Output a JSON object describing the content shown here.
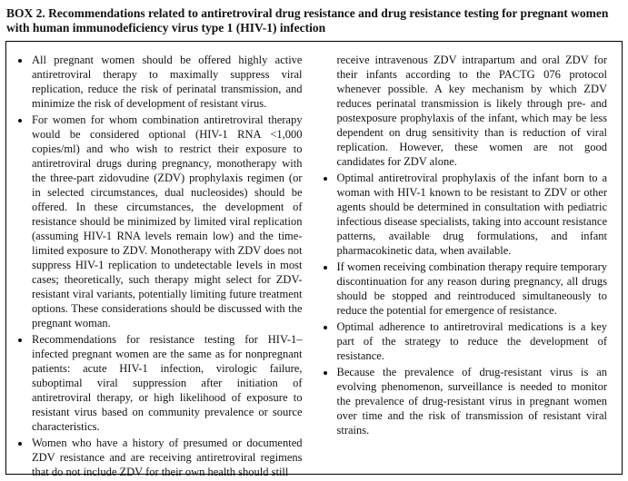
{
  "header": {
    "title": "BOX 2. Recommendations related to antiretroviral drug resistance and drug resistance testing for pregnant women with human immunodeficiency virus type 1 (HIV-1) infection"
  },
  "box": {
    "left_column": {
      "bullets": [
        "All pregnant women should be offered highly active antiretroviral therapy to maximally suppress viral replication, reduce the risk of perinatal transmission, and minimize the risk of development of resistant virus.",
        "For women for whom combination antiretroviral therapy would be considered optional (HIV-1 RNA <1,000 copies/ml) and who wish to restrict their exposure to antiretroviral drugs during pregnancy, monotherapy with the three-part zidovudine (ZDV) prophylaxis regimen (or in selected circumstances, dual nucleosides) should be offered. In these circumstances, the development of resistance should be minimized by limited viral replication (assuming HIV-1 RNA levels remain low) and the time-limited exposure to ZDV. Monotherapy with ZDV does not suppress HIV-1 replication to undetectable levels in most cases; theoretically, such therapy might select for ZDV-resistant viral variants, potentially limiting future treatment options. These considerations should be discussed with the pregnant woman.",
        "Recommendations for resistance testing for HIV-1–infected pregnant women are the same as for nonpregnant patients: acute HIV-1 infection, virologic failure, suboptimal viral suppression after initiation of antiretroviral therapy, or high likelihood of exposure to resistant virus based on community prevalence or source characteristics.",
        "Women who have a history of presumed or documented ZDV resistance and are receiving antiretroviral regimens that do not include ZDV for their own health should still"
      ]
    },
    "right_column": {
      "continuation": "receive intravenous ZDV intrapartum and oral ZDV for their infants according to the PACTG 076 protocol whenever possible. A key mechanism by which ZDV reduces perinatal transmission is likely through pre- and postexposure prophylaxis of the infant, which may be less dependent on drug sensitivity than is reduction of viral replication. However, these women are not good candidates for ZDV alone.",
      "bullets": [
        "Optimal antiretroviral prophylaxis of the infant born to a woman with HIV-1 known to be resistant to ZDV or other agents should be determined in consultation with pediatric infectious disease specialists, taking into account resistance patterns, available drug formulations, and infant pharmacokinetic data, when available.",
        "If women receiving combination therapy require temporary discontinuation for any reason during pregnancy, all drugs should be stopped and reintroduced simultaneously to reduce the potential for emergence of resistance.",
        "Optimal adherence to antiretroviral medications is a key part of the strategy to reduce the development of resistance.",
        "Because the prevalence of drug-resistant virus is an evolving phenomenon, surveillance is needed to monitor the prevalence of drug-resistant virus in pregnant women over time and the risk of transmission of resistant viral strains."
      ]
    }
  },
  "colors": {
    "text": "#121212",
    "border": "#000000",
    "background": "#ffffff"
  }
}
